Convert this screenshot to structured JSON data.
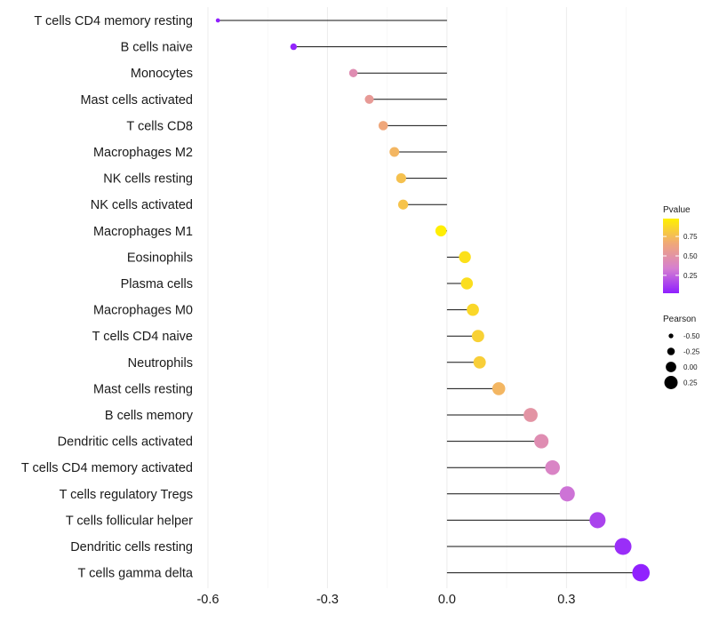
{
  "chart_data": {
    "type": "lollipop",
    "title": "",
    "xlabel": "",
    "ylabel": "",
    "xlim": [
      -0.62,
      0.52
    ],
    "xticks": [
      -0.6,
      -0.3,
      0.0,
      0.3
    ],
    "xtick_labels": [
      "-0.6",
      "-0.3",
      "0.0",
      "0.3"
    ],
    "grid": true,
    "legend_position": "right",
    "points": [
      {
        "label": "T cells CD4 memory resting",
        "value": -0.575,
        "pvalue": 0.0001
      },
      {
        "label": "B cells naive",
        "value": -0.385,
        "pvalue": 0.04
      },
      {
        "label": "Monocytes",
        "value": -0.235,
        "pvalue": 0.45
      },
      {
        "label": "Mast cells activated",
        "value": -0.195,
        "pvalue": 0.55
      },
      {
        "label": "T cells CD8",
        "value": -0.16,
        "pvalue": 0.65
      },
      {
        "label": "Macrophages M2",
        "value": -0.132,
        "pvalue": 0.72
      },
      {
        "label": "NK cells resting",
        "value": -0.115,
        "pvalue": 0.77
      },
      {
        "label": "NK cells activated",
        "value": -0.11,
        "pvalue": 0.78
      },
      {
        "label": "Macrophages M1",
        "value": -0.015,
        "pvalue": 0.97
      },
      {
        "label": "Eosinophils",
        "value": 0.045,
        "pvalue": 0.91
      },
      {
        "label": "Plasma cells",
        "value": 0.05,
        "pvalue": 0.9
      },
      {
        "label": "Macrophages M0",
        "value": 0.065,
        "pvalue": 0.87
      },
      {
        "label": "T cells CD4 naive",
        "value": 0.078,
        "pvalue": 0.84
      },
      {
        "label": "Neutrophils",
        "value": 0.082,
        "pvalue": 0.83
      },
      {
        "label": "Mast cells resting",
        "value": 0.13,
        "pvalue": 0.72
      },
      {
        "label": "B cells memory",
        "value": 0.21,
        "pvalue": 0.5
      },
      {
        "label": "Dendritic cells activated",
        "value": 0.237,
        "pvalue": 0.45
      },
      {
        "label": "T cells CD4 memory activated",
        "value": 0.265,
        "pvalue": 0.38
      },
      {
        "label": "T cells regulatory  Tregs ",
        "value": 0.302,
        "pvalue": 0.3
      },
      {
        "label": "T cells follicular helper",
        "value": 0.378,
        "pvalue": 0.14
      },
      {
        "label": "Dendritic cells resting",
        "value": 0.442,
        "pvalue": 0.07
      },
      {
        "label": "T cells gamma delta",
        "value": 0.487,
        "pvalue": 0.03
      }
    ],
    "color_legend": {
      "title": "Pvalue",
      "range": [
        0.02,
        0.98
      ],
      "ticks": [
        0.75,
        0.5,
        0.25
      ],
      "tick_labels": [
        "0.75",
        "0.50",
        "0.25"
      ],
      "colors": [
        "#8F1FFF",
        "#D67FD0",
        "#F0A878",
        "#FFF000"
      ]
    },
    "size_legend": {
      "title": "Pearson",
      "values": [
        -0.5,
        -0.25,
        0.0,
        0.25
      ],
      "labels": [
        "-0.50",
        "-0.25",
        "0.00",
        "0.25"
      ]
    }
  }
}
